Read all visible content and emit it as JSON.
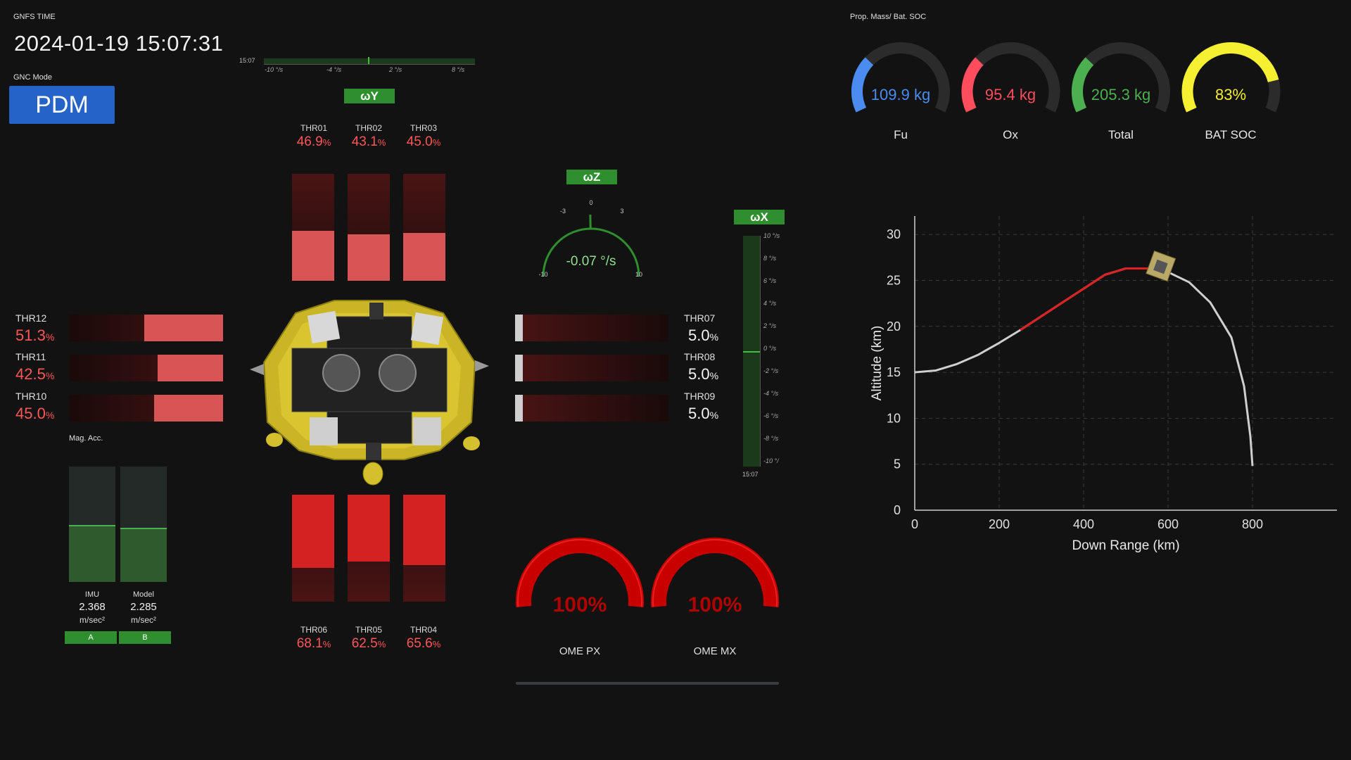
{
  "header": {
    "gnfs_label": "GNFS TIME",
    "time": "2024-01-19 15:07:31",
    "gnc_label": "GNC Mode",
    "gnc_mode": "PDM",
    "prop_label": "Prop. Mass/ Bat. SOC",
    "mag_acc_label": "Mag. Acc."
  },
  "wy": {
    "label": "ωY",
    "time": "15:07",
    "ticks": [
      "-10 °/s",
      "-4 °/s",
      "2 °/s",
      "8 °/s"
    ]
  },
  "wz": {
    "label": "ωZ",
    "value": "-0.07 °/s",
    "ticks": [
      "-10",
      "-3",
      "0",
      "3",
      "10"
    ],
    "rate": -0.07,
    "range": [
      -10,
      10
    ]
  },
  "wx": {
    "label": "ωX",
    "time": "15:07",
    "ticks": [
      "10 °/s",
      "8 °/s",
      "6 °/s",
      "4 °/s",
      "2 °/s",
      "0 °/s",
      "-2 °/s",
      "-4 °/s",
      "-6 °/s",
      "-8 °/s",
      "-10 °/"
    ]
  },
  "thrusters_top": [
    {
      "name": "THR01",
      "value": "46.9",
      "level": 0.469
    },
    {
      "name": "THR02",
      "value": "43.1",
      "level": 0.431
    },
    {
      "name": "THR03",
      "value": "45.0",
      "level": 0.45
    }
  ],
  "thrusters_bottom": [
    {
      "name": "THR06",
      "value": "68.1",
      "level": 0.681
    },
    {
      "name": "THR05",
      "value": "62.5",
      "level": 0.625
    },
    {
      "name": "THR04",
      "value": "65.6",
      "level": 0.656
    }
  ],
  "thrusters_left": [
    {
      "name": "THR12",
      "value": "51.3",
      "level": 0.513
    },
    {
      "name": "THR11",
      "value": "42.5",
      "level": 0.425
    },
    {
      "name": "THR10",
      "value": "45.0",
      "level": 0.45
    }
  ],
  "thrusters_right": [
    {
      "name": "THR07",
      "value": "5.0",
      "level": 0.05
    },
    {
      "name": "THR08",
      "value": "5.0",
      "level": 0.05
    },
    {
      "name": "THR09",
      "value": "5.0",
      "level": 0.05
    }
  ],
  "percent_sign": "%",
  "gauges": [
    {
      "label": "Fu",
      "value": "109.9 kg",
      "color": "#4a8cf0",
      "fraction": 0.3
    },
    {
      "label": "Ox",
      "value": "95.4 kg",
      "color": "#ff4d5e",
      "fraction": 0.3
    },
    {
      "label": "Total",
      "value": "205.3 kg",
      "color": "#4caf50",
      "fraction": 0.3
    },
    {
      "label": "BAT SOC",
      "value": "83%",
      "color": "#f5f032",
      "fraction": 0.83
    }
  ],
  "acc": {
    "imu_label": "IMU",
    "model_label": "Model",
    "imu_value": "2.368",
    "model_value": "2.285",
    "unit": "m/sec²",
    "imu_level": 0.48,
    "model_level": 0.46,
    "btn_a": "A",
    "btn_b": "B"
  },
  "ome": [
    {
      "label": "OME PX",
      "value": "100%",
      "fraction": 1.0
    },
    {
      "label": "OME MX",
      "value": "100%",
      "fraction": 1.0
    }
  ],
  "chart_data": {
    "type": "line",
    "xlabel": "Down Range (km)",
    "ylabel": "Altitude (km)",
    "xlim": [
      0,
      1000
    ],
    "ylim": [
      0,
      32
    ],
    "xticks": [
      0,
      200,
      400,
      600,
      800
    ],
    "yticks": [
      0,
      5,
      10,
      15,
      20,
      25,
      30
    ],
    "grid": true,
    "series": [
      {
        "color": "#cfcfcf",
        "x": [
          0,
          50,
          100,
          150,
          200,
          250,
          300,
          350,
          400,
          450,
          500,
          550,
          600,
          650,
          700,
          750,
          780,
          795,
          800
        ],
        "y": [
          15,
          15.2,
          15.9,
          16.9,
          18.2,
          19.6,
          21.1,
          22.6,
          24.1,
          25.6,
          26.3,
          26.3,
          25.9,
          24.8,
          22.6,
          18.8,
          13.5,
          8,
          4.8
        ]
      },
      {
        "color": "#e02020",
        "x": [
          250,
          300,
          350,
          400,
          450,
          500,
          550,
          580
        ],
        "y": [
          19.6,
          21.1,
          22.6,
          24.1,
          25.6,
          26.3,
          26.3,
          26.2
        ]
      }
    ]
  }
}
